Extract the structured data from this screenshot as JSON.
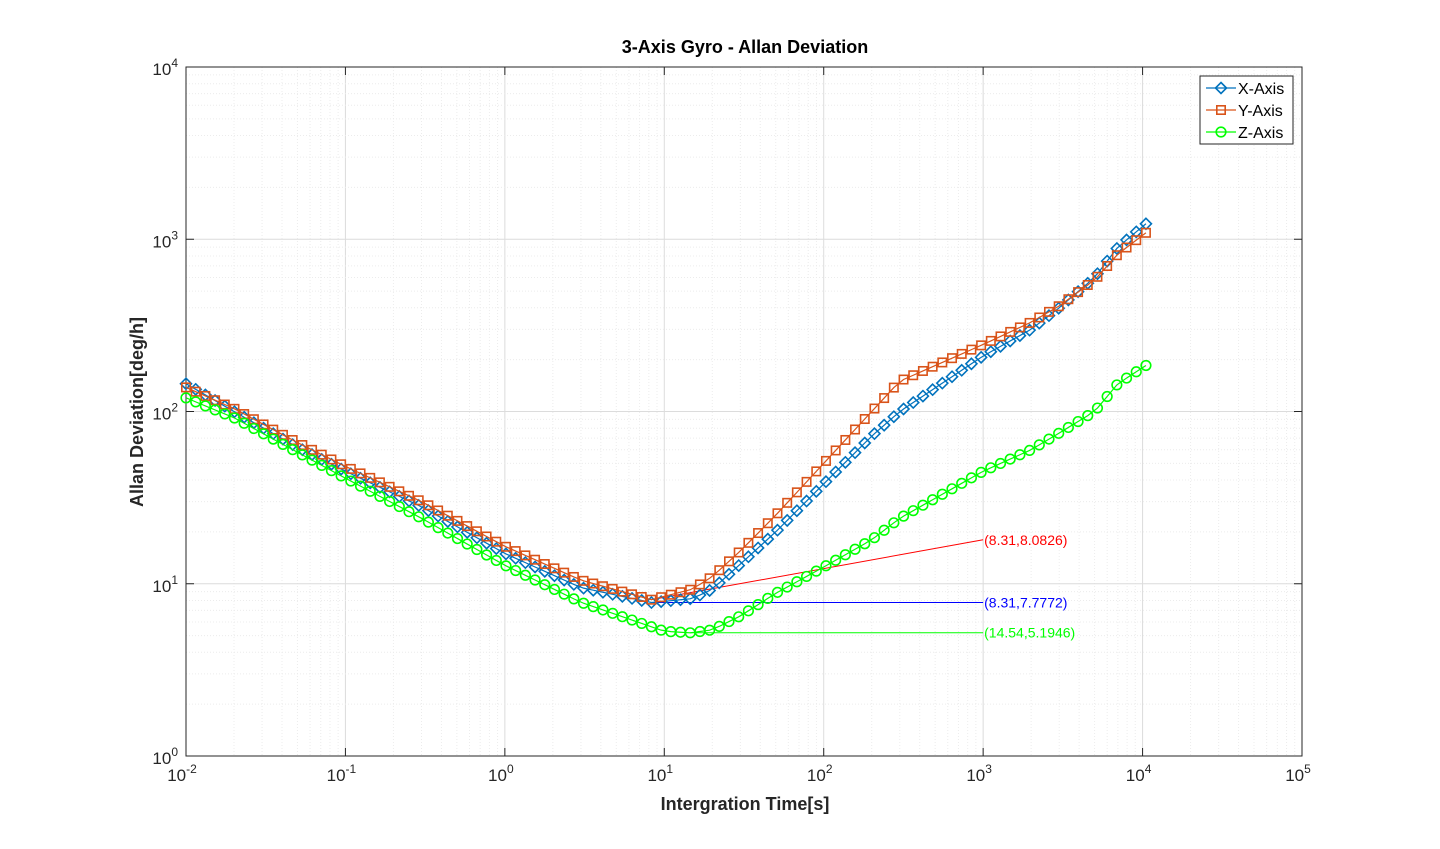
{
  "chart_data": {
    "type": "line",
    "title": "3-Axis Gyro - Allan Deviation",
    "xlabel": "Intergration Time[s]",
    "ylabel": "Allan Deviation[deg/h]",
    "xscale": "log",
    "yscale": "log",
    "xlim": [
      0.01,
      100000
    ],
    "ylim": [
      1,
      10000
    ],
    "grid": true,
    "minor_grid": true,
    "legend_position": "top-right",
    "x_ticks": [
      {
        "base": "10",
        "exp": "-2"
      },
      {
        "base": "10",
        "exp": "-1"
      },
      {
        "base": "10",
        "exp": "0"
      },
      {
        "base": "10",
        "exp": "1"
      },
      {
        "base": "10",
        "exp": "2"
      },
      {
        "base": "10",
        "exp": "3"
      },
      {
        "base": "10",
        "exp": "4"
      },
      {
        "base": "10",
        "exp": "5"
      }
    ],
    "y_ticks": [
      {
        "base": "10",
        "exp": "0"
      },
      {
        "base": "10",
        "exp": "1"
      },
      {
        "base": "10",
        "exp": "2"
      },
      {
        "base": "10",
        "exp": "3"
      },
      {
        "base": "10",
        "exp": "4"
      }
    ],
    "series": [
      {
        "name": "X-Axis",
        "color": "#0072BD",
        "marker": "diamond",
        "tau_start": 0.01,
        "tau_end": 10500,
        "min_tau": 8.31,
        "min_value": 7.7772,
        "profile": [
          [
            0.01,
            145
          ],
          [
            0.02,
            100
          ],
          [
            0.05,
            62
          ],
          [
            0.1,
            45
          ],
          [
            0.3,
            28
          ],
          [
            1,
            15
          ],
          [
            3,
            9.5
          ],
          [
            8.31,
            7.78
          ],
          [
            15,
            8.2
          ],
          [
            20,
            9.3
          ],
          [
            30,
            13
          ],
          [
            50,
            20
          ],
          [
            100,
            38
          ],
          [
            200,
            72
          ],
          [
            300,
            100
          ],
          [
            1000,
            210
          ],
          [
            2000,
            300
          ],
          [
            3000,
            400
          ],
          [
            5000,
            600
          ],
          [
            7000,
            900
          ],
          [
            10500,
            1230
          ]
        ]
      },
      {
        "name": "Y-Axis",
        "color": "#D95319",
        "marker": "square",
        "tau_start": 0.01,
        "tau_end": 10500,
        "min_tau": 8.31,
        "min_value": 8.0826,
        "profile": [
          [
            0.01,
            138
          ],
          [
            0.02,
            104
          ],
          [
            0.05,
            66
          ],
          [
            0.1,
            48
          ],
          [
            0.3,
            30
          ],
          [
            1,
            16.5
          ],
          [
            3,
            10.5
          ],
          [
            8.31,
            8.08
          ],
          [
            15,
            9.3
          ],
          [
            20,
            11
          ],
          [
            30,
            15.5
          ],
          [
            50,
            25
          ],
          [
            100,
            50
          ],
          [
            200,
            100
          ],
          [
            300,
            150
          ],
          [
            1000,
            245
          ],
          [
            2000,
            330
          ],
          [
            3000,
            410
          ],
          [
            5000,
            580
          ],
          [
            7000,
            820
          ],
          [
            10500,
            1090
          ]
        ]
      },
      {
        "name": "Z-Axis",
        "color": "#00FF00",
        "marker": "circle",
        "tau_start": 0.01,
        "tau_end": 10500,
        "min_tau": 14.54,
        "min_value": 5.1946,
        "profile": [
          [
            0.01,
            120
          ],
          [
            0.02,
            92
          ],
          [
            0.05,
            58
          ],
          [
            0.1,
            41
          ],
          [
            0.3,
            24
          ],
          [
            1,
            12.8
          ],
          [
            3,
            7.8
          ],
          [
            10,
            5.3
          ],
          [
            14.54,
            5.19
          ],
          [
            20,
            5.4
          ],
          [
            30,
            6.5
          ],
          [
            50,
            8.8
          ],
          [
            100,
            12.5
          ],
          [
            200,
            18
          ],
          [
            300,
            24
          ],
          [
            1000,
            45
          ],
          [
            2000,
            60
          ],
          [
            3000,
            75
          ],
          [
            5000,
            100
          ],
          [
            7000,
            145
          ],
          [
            10500,
            185
          ]
        ]
      }
    ],
    "annotations": [
      {
        "text": "(8.31,8.0826)",
        "color": "#FF0000",
        "point": [
          8.31,
          8.0826
        ],
        "label_anchor": [
          1000,
          18
        ]
      },
      {
        "text": "(8.31,7.7772)",
        "color": "#0000FF",
        "point": [
          8.31,
          7.7772
        ],
        "label_anchor": [
          1000,
          7.7772
        ]
      },
      {
        "text": "(14.54,5.1946)",
        "color": "#00FF00",
        "point": [
          14.54,
          5.1946
        ],
        "label_anchor": [
          1000,
          5.1946
        ]
      }
    ]
  }
}
